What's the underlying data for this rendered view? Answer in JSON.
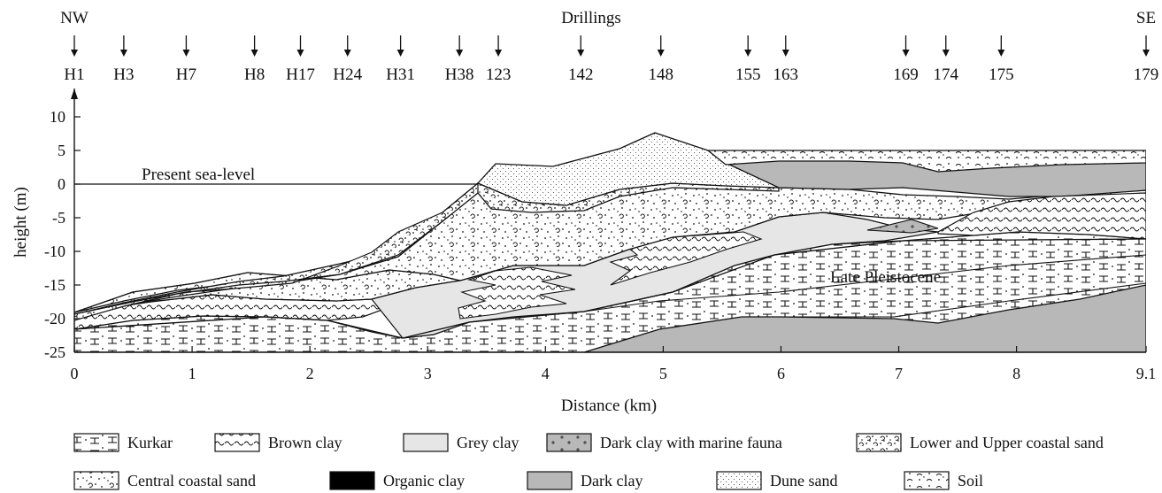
{
  "orientation": {
    "left": "NW",
    "right": "SE"
  },
  "drillings_label": "Drillings",
  "drillings": [
    {
      "name": "H1",
      "km": 0.0
    },
    {
      "name": "H3",
      "km": 0.42
    },
    {
      "name": "H7",
      "km": 0.95
    },
    {
      "name": "H8",
      "km": 1.53
    },
    {
      "name": "H17",
      "km": 1.92
    },
    {
      "name": "H24",
      "km": 2.32
    },
    {
      "name": "H31",
      "km": 2.77
    },
    {
      "name": "H38",
      "km": 3.27
    },
    {
      "name": "123",
      "km": 3.6
    },
    {
      "name": "142",
      "km": 4.3
    },
    {
      "name": "148",
      "km": 4.98
    },
    {
      "name": "155",
      "km": 5.72
    },
    {
      "name": "163",
      "km": 6.04
    },
    {
      "name": "169",
      "km": 7.06
    },
    {
      "name": "174",
      "km": 7.4
    },
    {
      "name": "175",
      "km": 7.87
    },
    {
      "name": "179",
      "km": 9.1
    }
  ],
  "axes": {
    "xlabel": "Distance (km)",
    "ylabel": "height (m)",
    "xlim": [
      0,
      9.1
    ],
    "ylim": [
      -25,
      10
    ],
    "xticks": [
      "0",
      "1",
      "2",
      "3",
      "4",
      "5",
      "6",
      "7",
      "8",
      "9.1"
    ],
    "yticks": [
      "10",
      "5",
      "0",
      "-5",
      "-10",
      "-15",
      "-20",
      "-25"
    ]
  },
  "annotations": {
    "sea_level": "Present sea-level",
    "late_pleistocene": "Late Pleistocene"
  },
  "legend_row1": [
    {
      "key": "kurkar",
      "label": "Kurkar"
    },
    {
      "key": "brown",
      "label": "Brown clay"
    },
    {
      "key": "grey",
      "label": "Grey clay"
    },
    {
      "key": "darkmarine",
      "label": "Dark clay with marine fauna"
    },
    {
      "key": "coastal",
      "label": "Lower and Upper coastal sand"
    }
  ],
  "legend_row2": [
    {
      "key": "central",
      "label": "Central coastal sand"
    },
    {
      "key": "organic",
      "label": "Organic clay"
    },
    {
      "key": "dark",
      "label": "Dark clay"
    },
    {
      "key": "dune",
      "label": "Dune sand"
    },
    {
      "key": "soil",
      "label": "Soil"
    }
  ],
  "colors": {
    "grey_clay": "#e6e6e6",
    "dark_clay": "#b8b8b8",
    "organic_clay": "#000000",
    "line": "#111111"
  }
}
